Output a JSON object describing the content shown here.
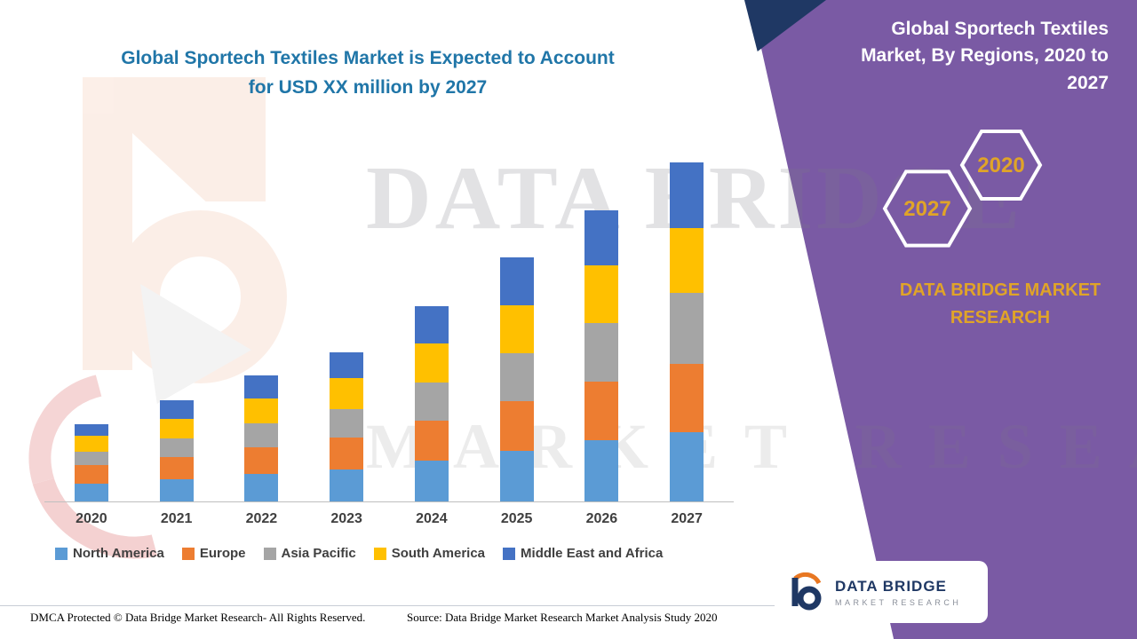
{
  "title": {
    "line1": "Global Sportech Textiles Market is Expected to Account",
    "line2": "for USD XX million by 2027"
  },
  "right_panel": {
    "title": "Global Sportech Textiles Market, By Regions, 2020 to 2027",
    "hexagon_front": "2027",
    "hexagon_back": "2020",
    "brand": "DATA BRIDGE MARKET RESEARCH",
    "logo": {
      "line1": "DATA BRIDGE",
      "line2": "MARKET RESEARCH"
    }
  },
  "watermark": {
    "line1": "DATA BRIDGE",
    "line2": "MARKET RESEARCH"
  },
  "footer": {
    "left": "DMCA Protected © Data Bridge Market Research- All Rights Reserved.",
    "source": "Source: Data Bridge Market Research Market Analysis Study 2020"
  },
  "colors": {
    "panel_purple": "#7A5AA4",
    "accent_gold": "#E0A428",
    "title_blue": "#2076A8",
    "navy": "#1F3864"
  },
  "chart_data": {
    "type": "bar",
    "stacked": true,
    "title": "Global Sportech Textiles Market is Expected to Account for USD XX million by 2027",
    "xlabel": "",
    "ylabel": "",
    "grid": false,
    "legend_position": "bottom",
    "value_note": "Y-axis unlabeled in source (USD XX million); values are relative units estimated from bar heights, 2027 total = 100",
    "categories": [
      "2020",
      "2021",
      "2022",
      "2023",
      "2024",
      "2025",
      "2026",
      "2027"
    ],
    "series": [
      {
        "name": "North America",
        "color": "#5B9BD5",
        "values": [
          5.2,
          6.5,
          8.0,
          9.5,
          12.0,
          15.0,
          18.0,
          20.4
        ]
      },
      {
        "name": "Europe",
        "color": "#ED7D31",
        "values": [
          5.5,
          6.5,
          8.0,
          9.3,
          11.8,
          14.6,
          17.4,
          20.2
        ]
      },
      {
        "name": "Asia Pacific",
        "color": "#A5A5A5",
        "values": [
          3.9,
          5.5,
          7.0,
          8.5,
          11.3,
          14.2,
          17.2,
          20.9
        ]
      },
      {
        "name": "South America",
        "color": "#FFC000",
        "values": [
          4.7,
          6.0,
          7.5,
          9.0,
          11.5,
          14.2,
          17.0,
          19.1
        ]
      },
      {
        "name": "Middle East and Africa",
        "color": "#4472C4",
        "values": [
          3.5,
          5.5,
          6.7,
          7.7,
          11.0,
          14.0,
          16.3,
          19.4
        ]
      }
    ],
    "totals": [
      22.8,
      30.0,
      37.2,
      44.0,
      57.6,
      72.0,
      85.9,
      100.0
    ]
  }
}
